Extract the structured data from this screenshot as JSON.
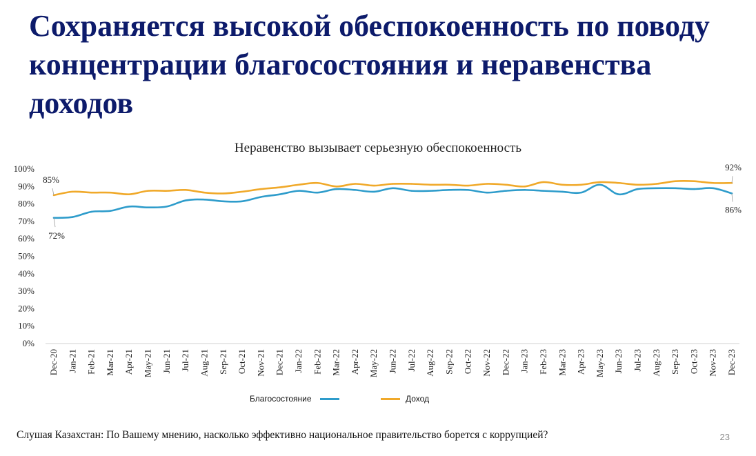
{
  "slide": {
    "title": "Сохраняется высокой обеспокоенность по поводу концентрации благосостояния и неравенства доходов",
    "footnote": "Слушая Казахстан: По Вашему мнению, насколько эффективно национальное правительство борется с коррупцией?",
    "page_number": "23"
  },
  "chart_data": {
    "type": "line",
    "title": "Неравенство вызывает серьезную обеспокоенность",
    "categories": [
      "Dec-20",
      "Jan-21",
      "Feb-21",
      "Mar-21",
      "Apr-21",
      "May-21",
      "Jun-21",
      "Jul-21",
      "Aug-21",
      "Sep-21",
      "Oct-21",
      "Nov-21",
      "Dec-21",
      "Jan-22",
      "Feb-22",
      "Mar-22",
      "Apr-22",
      "May-22",
      "Jun-22",
      "Jul-22",
      "Aug-22",
      "Sep-22",
      "Oct-22",
      "Nov-22",
      "Dec-22",
      "Jan-23",
      "Feb-23",
      "Mar-23",
      "Apr-23",
      "May-23",
      "Jun-23",
      "Jul-23",
      "Aug-23",
      "Sep-23",
      "Oct-23",
      "Nov-23",
      "Dec-23"
    ],
    "y_ticks": [
      "0%",
      "10%",
      "20%",
      "30%",
      "40%",
      "50%",
      "60%",
      "70%",
      "80%",
      "90%",
      "100%"
    ],
    "ylim": [
      0,
      100
    ],
    "grid": false,
    "legend_position": "bottom",
    "series": [
      {
        "name": "Благосостояние",
        "color": "#2e9ccb",
        "values": [
          72,
          72.5,
          75.5,
          76,
          78.5,
          78,
          78.5,
          82,
          82.5,
          81.5,
          81.5,
          84,
          85.5,
          87.5,
          86.5,
          88.5,
          88,
          87,
          89,
          87.5,
          87.5,
          88,
          88,
          86.5,
          87.5,
          88,
          87.5,
          87,
          86.5,
          91,
          85.5,
          88.5,
          89,
          89,
          88.5,
          89,
          86
        ]
      },
      {
        "name": "Доход",
        "color": "#f0a92a",
        "values": [
          85,
          87,
          86.5,
          86.5,
          85.5,
          87.5,
          87.5,
          88,
          86.5,
          86,
          87,
          88.5,
          89.5,
          91,
          92,
          90,
          91.5,
          90.5,
          91.5,
          91.5,
          91,
          91,
          90.5,
          91.5,
          91,
          90,
          92.5,
          91,
          91,
          92.5,
          92,
          91,
          91.5,
          93,
          93,
          92,
          92
        ]
      }
    ],
    "annotations": [
      {
        "series": 1,
        "index": 0,
        "text": "85%"
      },
      {
        "series": 0,
        "index": 0,
        "text": "72%"
      },
      {
        "series": 1,
        "index": 36,
        "text": "92%"
      },
      {
        "series": 0,
        "index": 36,
        "text": "86%"
      }
    ]
  }
}
